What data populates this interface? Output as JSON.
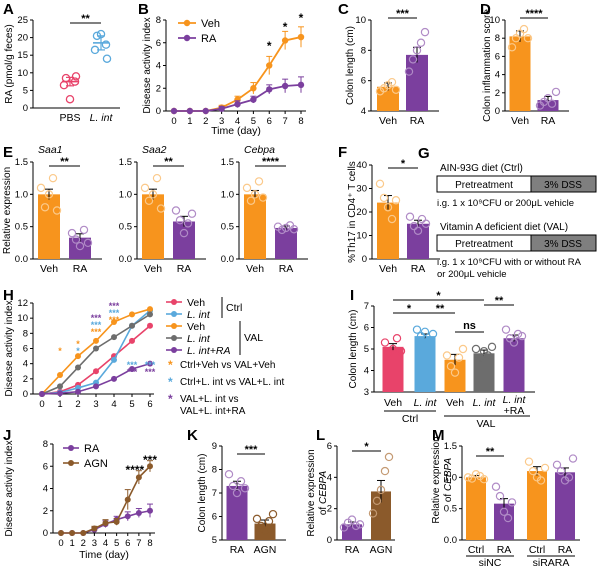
{
  "colors": {
    "veh": "#f7941d",
    "ra": "#7b3f9e",
    "pbs": "#e8436a",
    "lint": "#5aa9dc",
    "grey": "#6d6d6d",
    "agn": "#8b5a2b",
    "dss": "#7f7f7f"
  },
  "chart_data": [
    {
      "id": "A",
      "type": "scatter",
      "panel_label": "A",
      "ylabel": "RA (pmol/g feces)",
      "ylim": [
        0,
        25
      ],
      "yticks": [
        "0",
        "5",
        "10",
        "15",
        "20",
        "25"
      ],
      "categories": [
        "PBS",
        "L. int"
      ],
      "groups": [
        {
          "name": "PBS",
          "mean": 7.5,
          "sem": 1.2,
          "points": [
            8.5,
            7.5,
            6.5,
            9.0,
            2.5
          ]
        },
        {
          "name": "L. int",
          "mean": 18.5,
          "sem": 2.0,
          "points": [
            20.5,
            18.0,
            16.5,
            14.0,
            21.0
          ]
        }
      ],
      "significance": [
        {
          "pair": [
            "PBS",
            "L. int"
          ],
          "label": "**"
        }
      ]
    },
    {
      "id": "B",
      "type": "line",
      "panel_label": "B",
      "ylabel": "Disease activity index",
      "xlabel": "Time (day)",
      "x": [
        0,
        1,
        2,
        3,
        4,
        5,
        6,
        7,
        8
      ],
      "ylim": [
        0,
        8
      ],
      "yticks": [
        "0",
        "2",
        "4",
        "6",
        "8"
      ],
      "series": [
        {
          "name": "Veh",
          "values": [
            0,
            0,
            0,
            0.3,
            1.0,
            2.0,
            4.0,
            6.2,
            6.5
          ],
          "err": [
            0,
            0,
            0,
            0.2,
            0.3,
            0.5,
            0.8,
            0.8,
            0.9
          ]
        },
        {
          "name": "RA",
          "values": [
            0,
            0,
            0,
            0.2,
            0.6,
            1.0,
            1.9,
            2.2,
            2.3
          ],
          "err": [
            0,
            0,
            0,
            0.2,
            0.3,
            0.3,
            0.4,
            0.6,
            0.7
          ]
        }
      ],
      "annotations": [
        {
          "x": 6,
          "label": "*"
        },
        {
          "x": 7,
          "label": "*"
        },
        {
          "x": 8,
          "label": "*"
        }
      ]
    },
    {
      "id": "C",
      "type": "bar",
      "panel_label": "C",
      "ylabel": "Colon length (cm)",
      "ylim": [
        4,
        10
      ],
      "yticks": [
        "4",
        "6",
        "8",
        "10"
      ],
      "categories": [
        "Veh",
        "RA"
      ],
      "bar_values": [
        5.6,
        7.7
      ],
      "errors": [
        0.25,
        0.5
      ],
      "points": [
        [
          5.3,
          5.5,
          5.7,
          5.9,
          5.4
        ],
        [
          6.6,
          7.4,
          8.0,
          8.5,
          9.2
        ]
      ],
      "significance": [
        {
          "pair": [
            "Veh",
            "RA"
          ],
          "label": "***"
        }
      ]
    },
    {
      "id": "D",
      "type": "bar",
      "panel_label": "D",
      "ylabel": "Colon inflammation score",
      "ylim": [
        0,
        10
      ],
      "yticks": [
        "0",
        "2",
        "4",
        "6",
        "8",
        "10"
      ],
      "categories": [
        "Veh",
        "RA"
      ],
      "bar_values": [
        8.2,
        1.2
      ],
      "errors": [
        0.6,
        0.4
      ],
      "points": [
        [
          7.0,
          8.0,
          8.5,
          9.0,
          8.0
        ],
        [
          0.6,
          1.0,
          1.4,
          0.8,
          2.1
        ]
      ],
      "significance": [
        {
          "pair": [
            "Veh",
            "RA"
          ],
          "label": "****"
        }
      ]
    },
    {
      "id": "E",
      "type": "bar",
      "panel_label": "E",
      "ylabel": "Relative expression",
      "subplots": [
        {
          "title": "Saa1",
          "ylim": [
            0,
            1.5
          ],
          "yticks": [
            "0.0",
            "0.5",
            "1.0",
            "1.5"
          ],
          "categories": [
            "Veh",
            "RA"
          ],
          "bar_values": [
            1.0,
            0.33
          ],
          "errors": [
            0.08,
            0.06
          ],
          "points": [
            [
              1.1,
              0.8,
              1.0,
              1.25,
              0.75
            ],
            [
              0.4,
              0.3,
              0.2,
              0.45,
              0.25
            ]
          ],
          "sig": "**"
        },
        {
          "title": "Saa2",
          "ylim": [
            0,
            1.5
          ],
          "yticks": [
            "0.0",
            "0.5",
            "1.0",
            "1.5"
          ],
          "categories": [
            "Veh",
            "RA"
          ],
          "bar_values": [
            1.0,
            0.58
          ],
          "errors": [
            0.08,
            0.08
          ],
          "points": [
            [
              1.1,
              0.9,
              1.0,
              1.25,
              0.78
            ],
            [
              0.75,
              0.6,
              0.4,
              0.55,
              0.7
            ]
          ],
          "sig": "**"
        },
        {
          "title": "Cebpa",
          "ylim": [
            0,
            1.5
          ],
          "yticks": [
            "0.0",
            "0.5",
            "1.0",
            "1.5"
          ],
          "categories": [
            "Veh",
            "RA"
          ],
          "bar_values": [
            1.0,
            0.48
          ],
          "errors": [
            0.06,
            0.03
          ],
          "points": [
            [
              1.1,
              0.9,
              1.0,
              1.2,
              0.95
            ],
            [
              0.5,
              0.45,
              0.48,
              0.52,
              0.46
            ]
          ],
          "sig": "****"
        }
      ]
    },
    {
      "id": "F",
      "type": "bar",
      "panel_label": "F",
      "ylabel": "%Th17 in CD4⁺ T cells",
      "ylim": [
        0,
        40
      ],
      "yticks": [
        "0",
        "10",
        "20",
        "30",
        "40"
      ],
      "categories": [
        "Veh",
        "RA"
      ],
      "bar_values": [
        24,
        15
      ],
      "errors": [
        3,
        1.5
      ],
      "points": [
        [
          32,
          26,
          22,
          17,
          25
        ],
        [
          18,
          14,
          12,
          17,
          15
        ]
      ],
      "significance": [
        {
          "pair": [
            "Veh",
            "RA"
          ],
          "label": "*"
        }
      ]
    },
    {
      "id": "H",
      "type": "line",
      "panel_label": "H",
      "ylabel": "Disease activity index",
      "x": [
        0,
        1,
        2,
        3,
        4,
        5,
        6
      ],
      "ylim": [
        0,
        12
      ],
      "yticks": [
        "0",
        "2",
        "4",
        "6",
        "8",
        "10",
        "12"
      ],
      "series": [
        {
          "name": "Ctrl Veh",
          "values": [
            0,
            0.3,
            1.2,
            3.0,
            5.0,
            7.0,
            9.0
          ]
        },
        {
          "name": "Ctrl L. int",
          "values": [
            0,
            0.2,
            0.8,
            1.5,
            4.5,
            9.0,
            11.0
          ]
        },
        {
          "name": "VAL Veh",
          "values": [
            0,
            2.5,
            5.0,
            7.0,
            9.5,
            10.5,
            11.2
          ]
        },
        {
          "name": "VAL L. int",
          "values": [
            0,
            1.0,
            3.5,
            6.0,
            7.5,
            9.0,
            10.5
          ]
        },
        {
          "name": "VAL L. int+RA",
          "values": [
            0,
            0.1,
            0.3,
            1.0,
            2.0,
            3.3,
            4.0
          ]
        }
      ],
      "legend": [
        "Veh",
        "L. int",
        "Veh",
        "L. int",
        "L. int+RA"
      ],
      "legend_groups": [
        "Ctrl",
        "VAL"
      ],
      "annotations": [
        {
          "color": "orange",
          "label": "*",
          "text": "Ctrl+Veh vs VAL+Veh"
        },
        {
          "color": "blue",
          "label": "*",
          "text": "Ctrl+L. int vs VAL+L. int"
        },
        {
          "color": "purple",
          "label": "*",
          "text": "VAL+L. int vs VAL+L. int+RA"
        }
      ]
    },
    {
      "id": "I",
      "type": "bar",
      "panel_label": "I",
      "ylabel": "Colon length (cm)",
      "ylim": [
        3,
        7
      ],
      "yticks": [
        "3",
        "4",
        "5",
        "6",
        "7"
      ],
      "categories": [
        "Veh",
        "L. int",
        "Veh",
        "L. int",
        "L. int +RA"
      ],
      "groups": [
        "Ctrl",
        "VAL"
      ],
      "bar_values": [
        5.1,
        5.6,
        4.5,
        4.8,
        5.5
      ],
      "errors": [
        0.15,
        0.1,
        0.25,
        0.15,
        0.15
      ],
      "points": [
        [
          5.3,
          4.8,
          5.0,
          5.5,
          4.9
        ],
        [
          5.9,
          5.6,
          5.8,
          5.4,
          5.7
        ],
        [
          4.7,
          4.2,
          3.9,
          4.6,
          5.0
        ],
        [
          5.0,
          4.6,
          4.9,
          4.7,
          5.1
        ],
        [
          5.9,
          5.5,
          5.3,
          5.7,
          5.6
        ]
      ],
      "significance": [
        {
          "pair": [
            "Ctrl Veh",
            "VAL L. int"
          ],
          "label": "*"
        },
        {
          "pair": [
            "Ctrl Veh",
            "Ctrl L. int"
          ],
          "label": "*"
        },
        {
          "pair": [
            "Ctrl L. int",
            "VAL Veh"
          ],
          "label": "**"
        },
        {
          "pair": [
            "VAL Veh",
            "VAL L. int"
          ],
          "label": "ns"
        },
        {
          "pair": [
            "VAL L. int",
            "VAL L. int+RA"
          ],
          "label": "**"
        }
      ]
    },
    {
      "id": "J",
      "type": "line",
      "panel_label": "J",
      "ylabel": "Disease activity index",
      "xlabel": "Time (day)",
      "x": [
        0,
        1,
        2,
        3,
        4,
        5,
        6,
        7,
        8
      ],
      "ylim": [
        0,
        8
      ],
      "yticks": [
        "0",
        "2",
        "4",
        "6",
        "8"
      ],
      "series": [
        {
          "name": "RA",
          "values": [
            0,
            0,
            0,
            0.3,
            0.8,
            1.2,
            1.5,
            1.8,
            2.0
          ],
          "err": [
            0,
            0,
            0,
            0.2,
            0.3,
            0.3,
            0.4,
            0.4,
            0.6
          ]
        },
        {
          "name": "AGN",
          "values": [
            0,
            0,
            0,
            0.4,
            0.9,
            1.0,
            3.0,
            5.0,
            6.0
          ],
          "err": [
            0,
            0,
            0,
            0.2,
            0.3,
            0.3,
            0.9,
            0.6,
            0.5
          ]
        }
      ],
      "annotations": [
        {
          "x": 7,
          "label": "****"
        },
        {
          "x": 8,
          "label": "***"
        }
      ]
    },
    {
      "id": "K",
      "type": "bar",
      "panel_label": "K",
      "ylabel": "Colon length (cm)",
      "ylim": [
        5,
        9
      ],
      "yticks": [
        "5",
        "6",
        "7",
        "8",
        "9"
      ],
      "categories": [
        "RA",
        "AGN"
      ],
      "bar_values": [
        7.3,
        5.7
      ],
      "errors": [
        0.2,
        0.15
      ],
      "points": [
        [
          7.8,
          7.3,
          7.0,
          7.5,
          7.2
        ],
        [
          5.9,
          5.6,
          5.4,
          5.8,
          6.1
        ]
      ],
      "significance": [
        {
          "pair": [
            "RA",
            "AGN"
          ],
          "label": "***"
        }
      ]
    },
    {
      "id": "L",
      "type": "bar",
      "panel_label": "L",
      "ylabel": "Relative expression of CEBPA",
      "ylim": [
        0,
        6
      ],
      "yticks": [
        "0",
        "2",
        "4",
        "6"
      ],
      "categories": [
        "RA",
        "AGN"
      ],
      "bar_values": [
        1.0,
        3.1
      ],
      "errors": [
        0.15,
        0.7
      ],
      "points": [
        [
          0.8,
          1.1,
          1.3,
          0.9,
          1.0
        ],
        [
          1.7,
          2.5,
          3.2,
          4.4,
          5.3
        ]
      ],
      "significance": [
        {
          "pair": [
            "RA",
            "AGN"
          ],
          "label": "*"
        }
      ]
    },
    {
      "id": "M",
      "type": "bar",
      "panel_label": "M",
      "ylabel": "Relative expression of CEBPA",
      "ylim": [
        0,
        1.5
      ],
      "yticks": [
        "0.0",
        "0.5",
        "1.0",
        "1.5"
      ],
      "categories": [
        "Ctrl",
        "RA",
        "Ctrl",
        "RA"
      ],
      "groups": [
        "siNC",
        "siRARA"
      ],
      "bar_values": [
        1.0,
        0.58,
        1.1,
        1.08
      ],
      "errors": [
        0.03,
        0.08,
        0.07,
        0.07
      ],
      "points": [
        [
          1.0,
          0.98,
          1.05,
          1.02,
          0.97
        ],
        [
          0.85,
          0.7,
          0.45,
          0.35,
          0.6
        ],
        [
          1.25,
          1.1,
          1.0,
          0.95,
          1.15
        ],
        [
          1.2,
          1.1,
          0.95,
          1.0,
          1.3
        ]
      ],
      "significance": [
        {
          "pair": [
            "siNC Ctrl",
            "siNC RA"
          ],
          "label": "**"
        }
      ]
    }
  ],
  "panel_g": {
    "label": "G",
    "ctrl_diet": "AIN-93G diet (Ctrl)",
    "val_diet": "Vitamin A deficient diet (VAL)",
    "pretreatment": "Pretreatment",
    "dss": "3% DSS",
    "ctrl_note": "i.g. 1 x 10⁹CFU or 200μL vehicle",
    "val_note_1": "i.g. 1 x 10⁹CFU with or without RA",
    "val_note_2": "or 200μL vehicle"
  }
}
